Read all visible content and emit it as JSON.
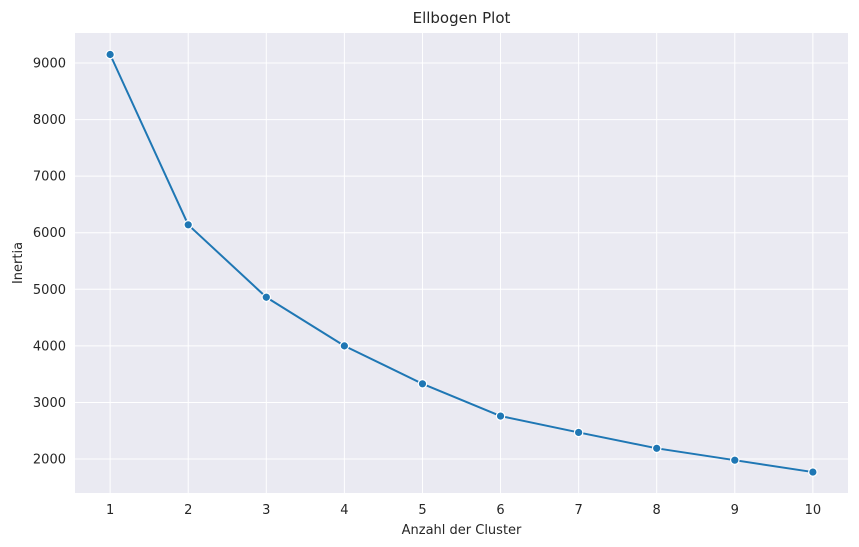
{
  "chart_data": {
    "type": "line",
    "title": "Ellbogen Plot",
    "xlabel": "Anzahl der Cluster",
    "ylabel": "Inertia",
    "x": [
      1,
      2,
      3,
      4,
      5,
      6,
      7,
      8,
      9,
      10
    ],
    "series": [
      {
        "name": "Inertia",
        "values": [
          9150,
          6140,
          4860,
          4000,
          3330,
          2760,
          2470,
          2190,
          1980,
          1770
        ],
        "color": "#1f77b4",
        "marker": "circle"
      }
    ],
    "xticks": [
      1,
      2,
      3,
      4,
      5,
      6,
      7,
      8,
      9,
      10
    ],
    "yticks": [
      2000,
      3000,
      4000,
      5000,
      6000,
      7000,
      8000,
      9000
    ],
    "xlim": [
      0.55,
      10.45
    ],
    "ylim": [
      1400,
      9530
    ],
    "grid": true,
    "background": "#eaeaf2",
    "grid_color": "#ffffff"
  }
}
